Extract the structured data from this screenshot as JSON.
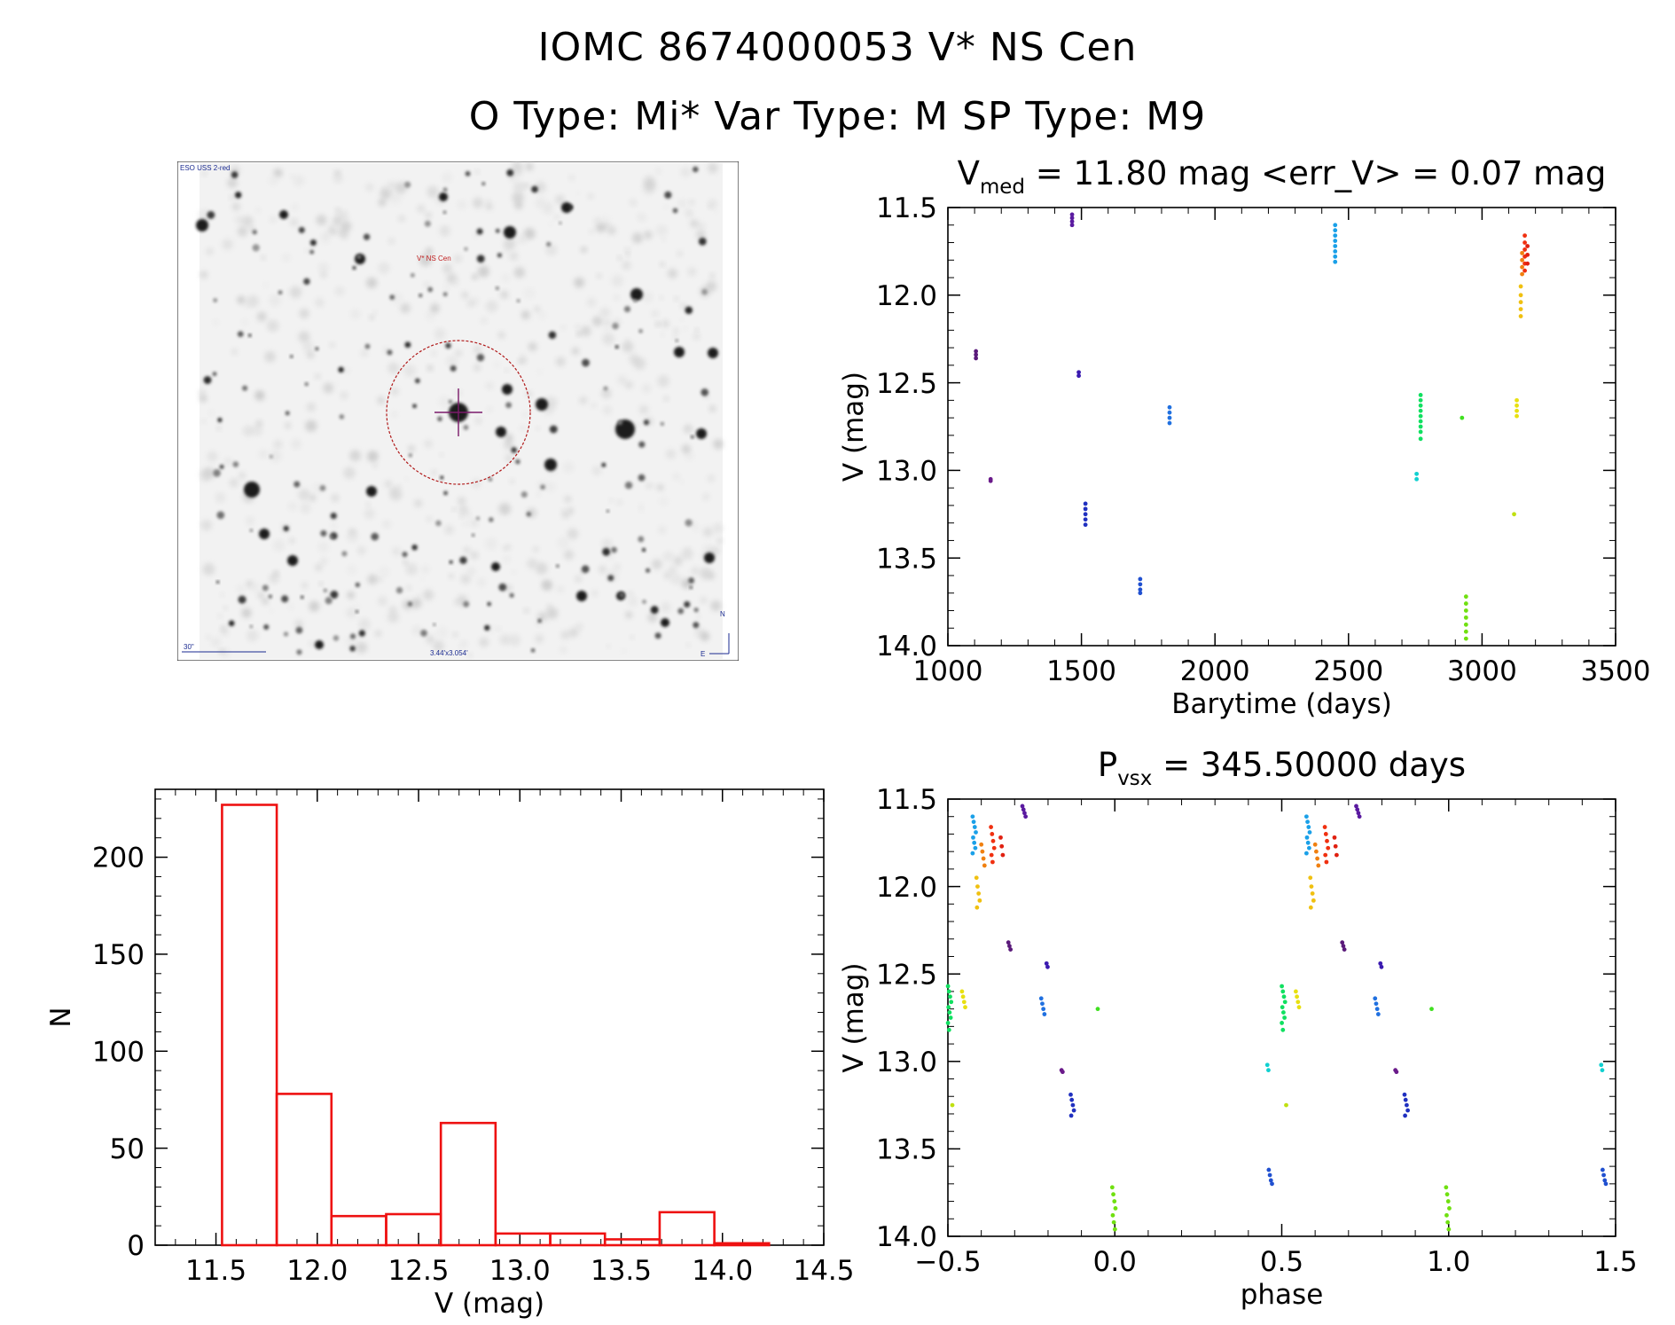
{
  "header": {
    "title": "IOMC 8674000053   V* NS Cen",
    "subtitle": "O Type: Mi*  Var Type: M  SP Type: M9"
  },
  "sky_image": {
    "survey_label": "ESO USS 2-red",
    "target_label": "V* NS Cen",
    "scale_label": "30\"",
    "fov_label": "3.44'x3.054'",
    "north_label": "N",
    "east_label": "E"
  },
  "chart_data": [
    {
      "id": "lightcurve",
      "type": "scatter",
      "title": "V_med = 11.80 mag <err_V> = 0.07 mag",
      "title_parts": {
        "main": "V",
        "sub": "med",
        "rest": " = 11.80 mag <err_V> = 0.07 mag"
      },
      "xlabel": "Barytime (days)",
      "ylabel": "V (mag)",
      "xlim": [
        1000,
        3500
      ],
      "ylim": [
        14.0,
        11.5
      ],
      "xticks": [
        1000,
        1500,
        2000,
        2500,
        3000,
        3500
      ],
      "xtick_labels": [
        "1000",
        "1500",
        "2000",
        "2500",
        "3000",
        "3500"
      ],
      "yticks": [
        11.5,
        12.0,
        12.5,
        13.0,
        13.5,
        14.0
      ],
      "ytick_labels": [
        "11.5",
        "12.0",
        "12.5",
        "13.0",
        "13.5",
        "14.0"
      ],
      "groups": [
        {
          "t": 1105,
          "v": [
            12.32,
            12.34,
            12.36
          ],
          "color": "#5a1a7a"
        },
        {
          "t": 1160,
          "v": [
            13.05,
            13.06
          ],
          "color": "#6a1a8a"
        },
        {
          "t": 1465,
          "v": [
            11.54,
            11.56,
            11.58,
            11.6
          ],
          "color": "#5a1aa0"
        },
        {
          "t": 1490,
          "v": [
            12.44,
            12.46
          ],
          "color": "#3a1ab0"
        },
        {
          "t": 1515,
          "v": [
            13.19,
            13.22,
            13.25,
            13.28,
            13.31
          ],
          "color": "#2030c0"
        },
        {
          "t": 1720,
          "v": [
            13.62,
            13.65,
            13.68,
            13.7
          ],
          "color": "#2050d0"
        },
        {
          "t": 1830,
          "v": [
            12.64,
            12.67,
            12.7,
            12.73
          ],
          "color": "#2070e0"
        },
        {
          "t": 2450,
          "v": [
            11.6,
            11.63,
            11.66,
            11.69,
            11.72,
            11.75,
            11.78,
            11.81
          ],
          "color": "#1aa0e8"
        },
        {
          "t": 2755,
          "v": [
            13.02,
            13.05
          ],
          "color": "#10d0d0"
        },
        {
          "t": 2770,
          "v": [
            12.57,
            12.6,
            12.63,
            12.66,
            12.69,
            12.72,
            12.75,
            12.78,
            12.82
          ],
          "color": "#10e060"
        },
        {
          "t": 2925,
          "v": [
            12.7
          ],
          "color": "#40e020"
        },
        {
          "t": 2940,
          "v": [
            13.72,
            13.76,
            13.8,
            13.84,
            13.88,
            13.92,
            13.96
          ],
          "color": "#70e010"
        },
        {
          "t": 3120,
          "v": [
            13.25
          ],
          "color": "#c0e010"
        },
        {
          "t": 3130,
          "v": [
            12.6,
            12.63,
            12.66,
            12.69
          ],
          "color": "#e8e010"
        },
        {
          "t": 3145,
          "v": [
            11.95,
            12.0,
            12.04,
            12.08,
            12.12
          ],
          "color": "#f0c010"
        },
        {
          "t": 3150,
          "v": [
            11.76,
            11.8,
            11.84,
            11.88
          ],
          "color": "#f08010"
        },
        {
          "t": 3160,
          "v": [
            11.66,
            11.7,
            11.74,
            11.78,
            11.82,
            11.86
          ],
          "color": "#f03010"
        },
        {
          "t": 3170,
          "v": [
            11.72,
            11.77,
            11.82
          ],
          "color": "#e02010"
        }
      ]
    },
    {
      "id": "phased",
      "type": "scatter",
      "title": "P_vsx = 345.50000 days",
      "title_parts": {
        "main": "P",
        "sub": "vsx",
        "rest": " = 345.50000 days"
      },
      "period_days": 345.5,
      "xlabel": "phase",
      "ylabel": "V (mag)",
      "xlim": [
        -0.5,
        1.5
      ],
      "ylim": [
        14.0,
        11.5
      ],
      "xticks": [
        -0.5,
        0.0,
        0.5,
        1.0,
        1.5
      ],
      "xtick_labels": [
        "−0.5",
        "0.0",
        "0.5",
        "1.0",
        "1.5"
      ],
      "yticks": [
        11.5,
        12.0,
        12.5,
        13.0,
        13.5,
        14.0
      ],
      "ytick_labels": [
        "11.5",
        "12.0",
        "12.5",
        "13.0",
        "13.5",
        "14.0"
      ]
    },
    {
      "id": "histogram",
      "type": "bar",
      "title": "",
      "xlabel": "V (mag)",
      "ylabel": "N",
      "xlim": [
        11.2,
        14.5
      ],
      "ylim": [
        0,
        235
      ],
      "xticks": [
        11.5,
        12.0,
        12.5,
        13.0,
        13.5,
        14.0,
        14.5
      ],
      "xtick_labels": [
        "11.5",
        "12.0",
        "12.5",
        "13.0",
        "13.5",
        "14.0",
        "14.5"
      ],
      "yticks": [
        0,
        50,
        100,
        150,
        200
      ],
      "ytick_labels": [
        "0",
        "50",
        "100",
        "150",
        "200"
      ],
      "bin_edges": [
        11.53,
        11.8,
        12.07,
        12.34,
        12.61,
        12.88,
        13.15,
        13.42,
        13.69,
        13.96,
        14.23
      ],
      "values": [
        227,
        78,
        15,
        16,
        63,
        6,
        6,
        3,
        17,
        1
      ],
      "color": "#ee1111"
    }
  ]
}
